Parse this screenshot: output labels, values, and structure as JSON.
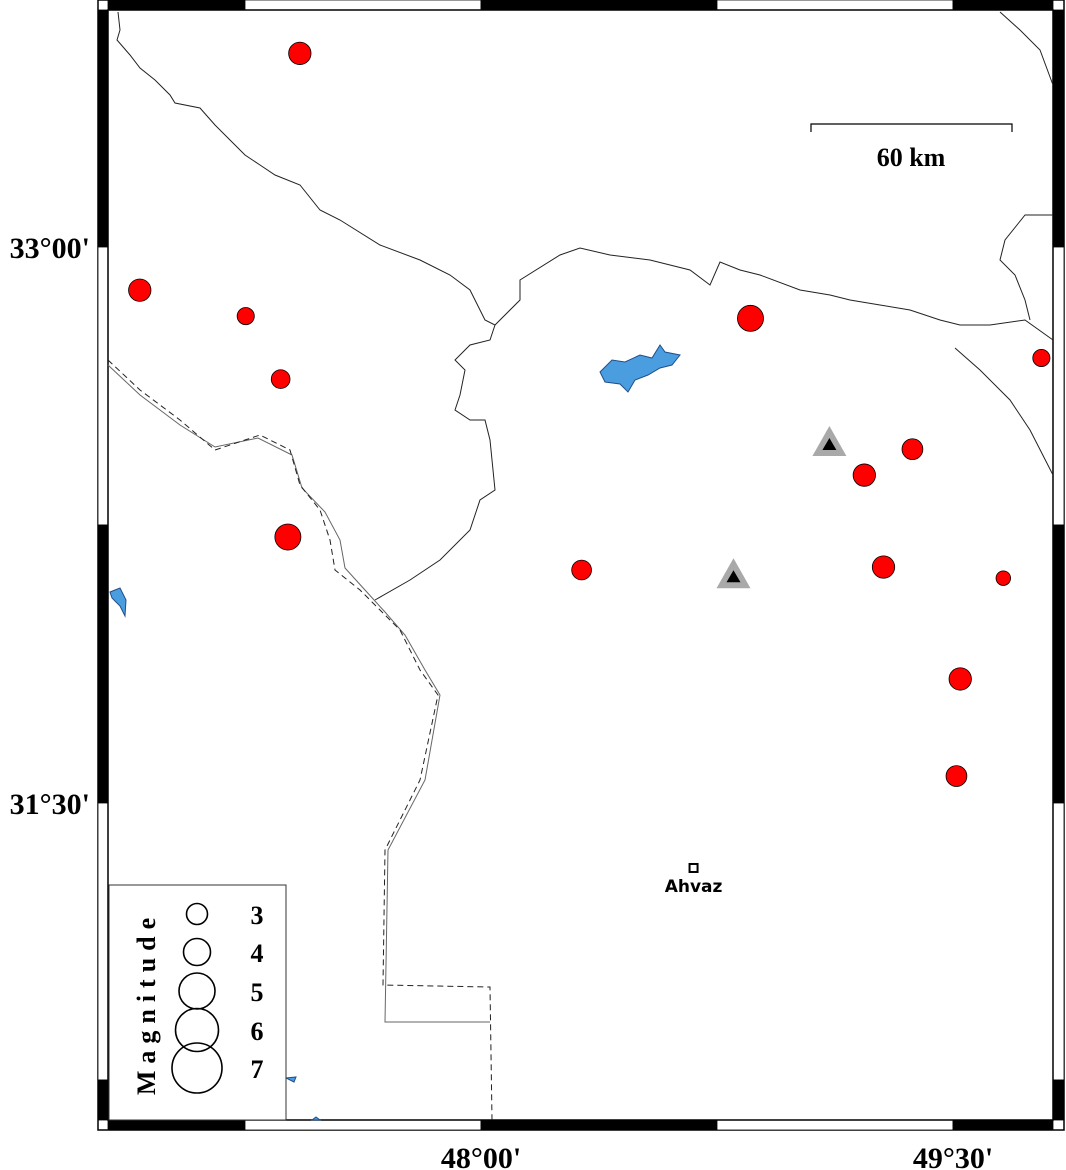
{
  "map": {
    "extent": {
      "lon_min": 46.815,
      "lon_max": 49.82,
      "lat_min": 30.645,
      "lat_max": 33.64
    },
    "frame_ticks": {
      "x": [
        {
          "lon": 48.0,
          "label": "48°00'"
        },
        {
          "lon": 49.5,
          "label": "49°30'"
        }
      ],
      "y": [
        {
          "lat": 33.0,
          "label": "33°00'"
        },
        {
          "lat": 31.5,
          "label": "31°30'"
        }
      ]
    },
    "scale_bar": {
      "label": "60 km",
      "length_km": 60
    },
    "colors": {
      "event": "#ff0000",
      "water": "#4a9ee0",
      "station_outer": "#a9a9a9",
      "station_inner": "#000000"
    },
    "earthquakes": [
      {
        "lon": 47.425,
        "lat": 33.523,
        "mag": 4.5
      },
      {
        "lon": 46.916,
        "lat": 32.884,
        "mag": 4.5
      },
      {
        "lon": 47.253,
        "lat": 32.814,
        "mag": 3.5
      },
      {
        "lon": 47.364,
        "lat": 32.644,
        "mag": 3.8
      },
      {
        "lon": 47.387,
        "lat": 32.218,
        "mag": 5.2
      },
      {
        "lon": 48.858,
        "lat": 32.808,
        "mag": 5.2
      },
      {
        "lon": 49.783,
        "lat": 32.701,
        "mag": 3.5
      },
      {
        "lon": 49.373,
        "lat": 32.455,
        "mag": 4.2
      },
      {
        "lon": 49.22,
        "lat": 32.385,
        "mag": 4.5
      },
      {
        "lon": 49.281,
        "lat": 32.137,
        "mag": 4.5
      },
      {
        "lon": 48.321,
        "lat": 32.129,
        "mag": 4.0
      },
      {
        "lon": 49.662,
        "lat": 32.107,
        "mag": 3.0
      },
      {
        "lon": 49.525,
        "lat": 31.835,
        "mag": 4.5
      },
      {
        "lon": 49.513,
        "lat": 31.573,
        "mag": 4.2
      }
    ],
    "stations": [
      {
        "lon": 49.109,
        "lat": 32.469
      },
      {
        "lon": 48.804,
        "lat": 32.112
      }
    ],
    "cities": [
      {
        "name": "Ahvaz",
        "lon": 48.677,
        "lat": 31.325
      }
    ]
  },
  "legend": {
    "title": "Magnitude",
    "items": [
      {
        "mag": 3,
        "label": "3"
      },
      {
        "mag": 4,
        "label": "4"
      },
      {
        "mag": 5,
        "label": "5"
      },
      {
        "mag": 6,
        "label": "6"
      },
      {
        "mag": 7,
        "label": "7"
      }
    ]
  }
}
